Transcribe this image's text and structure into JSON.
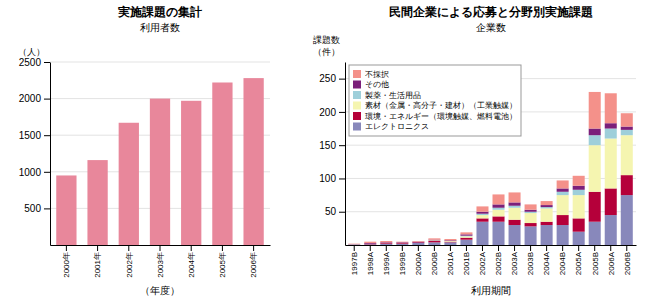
{
  "chart_data": [
    {
      "type": "bar",
      "title": "実施課題の集計",
      "subtitle": "利用者数",
      "x_label": "（年度）",
      "y_label": "（人）",
      "categories": [
        "2000年",
        "2001年",
        "2002年",
        "2003年",
        "2004年",
        "2005年",
        "2006年"
      ],
      "values": [
        950,
        1160,
        1670,
        2000,
        1970,
        2220,
        2280
      ],
      "color": "#E8879B",
      "ylim": [
        0,
        2500
      ],
      "yticks": [
        500,
        1000,
        1500,
        2000,
        2500
      ],
      "grid": true
    },
    {
      "type": "bar",
      "stacked": true,
      "title": "民間企業による応募と分野別実施課題",
      "subtitle": "企業数",
      "x_label": "利用期間",
      "y_label": [
        "課題数",
        "（件）"
      ],
      "categories": [
        "1997B",
        "1998A",
        "1999A",
        "1999B",
        "2000A",
        "2000B",
        "2001A",
        "2001B",
        "2002A",
        "2002B",
        "2003A",
        "2003B",
        "2004A",
        "2004B",
        "2005A",
        "2005B",
        "2006A",
        "2006B"
      ],
      "series": [
        {
          "name": "エレクトロニクス",
          "color": "#8888BB",
          "values": [
            1,
            1,
            2,
            2,
            3,
            4,
            4,
            8,
            35,
            35,
            30,
            28,
            30,
            30,
            20,
            35,
            45,
            75
          ]
        },
        {
          "name": "環境・エネルギー（環境触媒、燃料電池）",
          "color": "#B5003A",
          "values": [
            0,
            1,
            1,
            1,
            1,
            2,
            1,
            3,
            5,
            8,
            8,
            5,
            5,
            15,
            20,
            45,
            40,
            30
          ]
        },
        {
          "name": "素材（金属・高分子・建材）（工業触媒）",
          "color": "#F5F5B0",
          "values": [
            0,
            0,
            0,
            0,
            0,
            1,
            1,
            2,
            5,
            10,
            18,
            15,
            20,
            30,
            35,
            70,
            75,
            60
          ]
        },
        {
          "name": "製薬・生活用品",
          "color": "#9ECFDA",
          "values": [
            0,
            0,
            0,
            0,
            0,
            0,
            0,
            1,
            2,
            3,
            3,
            2,
            2,
            5,
            8,
            15,
            15,
            8
          ]
        },
        {
          "name": "その他",
          "color": "#7B1F7A",
          "values": [
            0,
            1,
            1,
            1,
            1,
            1,
            1,
            2,
            3,
            5,
            5,
            3,
            3,
            5,
            6,
            10,
            8,
            5
          ]
        },
        {
          "name": "不採択",
          "color": "#F4918A",
          "values": [
            1,
            2,
            2,
            1,
            1,
            2,
            2,
            3,
            8,
            15,
            15,
            8,
            6,
            12,
            15,
            55,
            45,
            20
          ]
        }
      ],
      "ylim": [
        0,
        275
      ],
      "yticks": [
        50,
        100,
        150,
        200,
        250
      ],
      "grid": true,
      "legend": "upper left"
    }
  ]
}
